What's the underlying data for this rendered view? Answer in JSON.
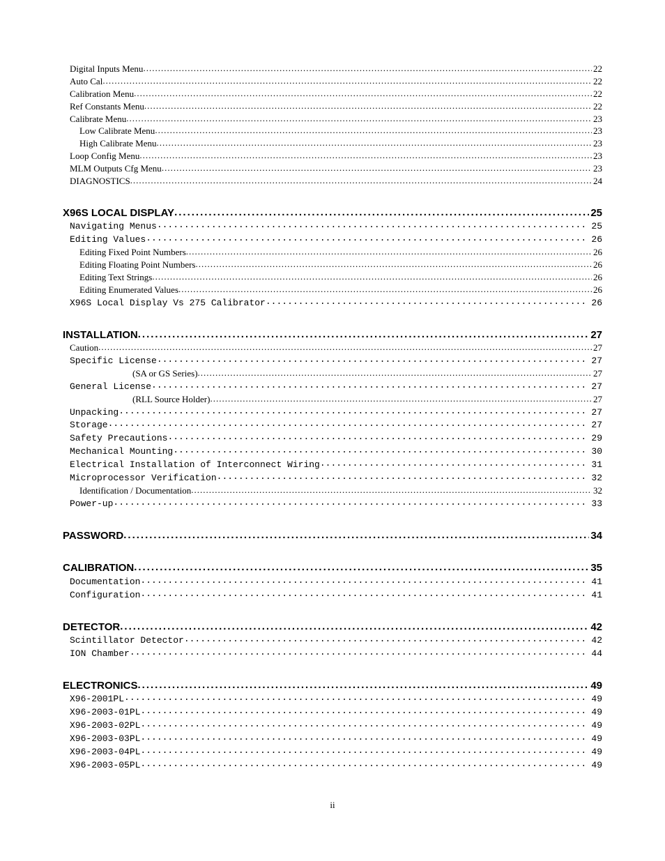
{
  "page_footer": "ii",
  "toc": [
    {
      "label": "Digital Inputs Menu",
      "page": "22",
      "style": "serif",
      "indent": 1,
      "leader": "dots"
    },
    {
      "label": "Auto Cal",
      "page": "22",
      "style": "serif",
      "indent": 1,
      "leader": "dots"
    },
    {
      "label": "Calibration Menu",
      "page": "22",
      "style": "serif",
      "indent": 1,
      "leader": "dots"
    },
    {
      "label": "Ref Constants Menu",
      "page": "22",
      "style": "serif",
      "indent": 1,
      "leader": "dots"
    },
    {
      "label": "Calibrate Menu",
      "page": "23",
      "style": "serif",
      "indent": 1,
      "leader": "dots"
    },
    {
      "label": "Low Calibrate Menu",
      "page": "23",
      "style": "serif",
      "indent": 2,
      "leader": "dots"
    },
    {
      "label": "High Calibrate Menu",
      "page": "23",
      "style": "serif",
      "indent": 2,
      "leader": "dots"
    },
    {
      "label": "Loop Config Menu",
      "page": "23",
      "style": "serif",
      "indent": 1,
      "leader": "dots"
    },
    {
      "label": "MLM Outputs Cfg Menu",
      "page": "23",
      "style": "serif",
      "indent": 1,
      "leader": "dots"
    },
    {
      "label": "DIAGNOSTICS",
      "page": "24",
      "style": "serif",
      "indent": 1,
      "leader": "dots"
    },
    {
      "label": "X96S LOCAL DISPLAY",
      "page": "25",
      "style": "h1",
      "indent": 0,
      "leader": "dots"
    },
    {
      "label": "Navigating Menus",
      "page": "25",
      "style": "mono",
      "indent": 1,
      "leader": "mono"
    },
    {
      "label": "Editing Values",
      "page": "26",
      "style": "mono",
      "indent": 1,
      "leader": "mono"
    },
    {
      "label": "Editing Fixed Point Numbers",
      "page": "26",
      "style": "serif",
      "indent": 2,
      "leader": "dots"
    },
    {
      "label": "Editing Floating Point Numbers",
      "page": "26",
      "style": "serif",
      "indent": 2,
      "leader": "dots"
    },
    {
      "label": "Editing Text Strings",
      "page": "26",
      "style": "serif",
      "indent": 2,
      "leader": "dots"
    },
    {
      "label": "Editing Enumerated Values",
      "page": "26",
      "style": "serif",
      "indent": 2,
      "leader": "dots"
    },
    {
      "label": "X96S Local Display Vs 275 Calibrator",
      "page": "26",
      "style": "mono",
      "indent": 1,
      "leader": "mono"
    },
    {
      "label": "INSTALLATION",
      "page": "27",
      "style": "h1",
      "indent": 0,
      "leader": "dots"
    },
    {
      "label": "Caution",
      "page": "27",
      "style": "serif",
      "indent": 1,
      "leader": "dots"
    },
    {
      "label": "Specific License",
      "page": "27",
      "style": "mono",
      "indent": 1,
      "leader": "mono"
    },
    {
      "label": "(SA or GS Series)",
      "page": "27",
      "style": "serif",
      "indent": 4,
      "leader": "dots"
    },
    {
      "label": "General License",
      "page": "27",
      "style": "mono",
      "indent": 1,
      "leader": "mono"
    },
    {
      "label": "(RLL Source Holder)",
      "page": "27",
      "style": "serif",
      "indent": 4,
      "leader": "dots"
    },
    {
      "label": "Unpacking",
      "page": "27",
      "style": "mono",
      "indent": 1,
      "leader": "mono"
    },
    {
      "label": "Storage",
      "page": "27",
      "style": "mono",
      "indent": 1,
      "leader": "mono"
    },
    {
      "label": "Safety Precautions",
      "page": "29",
      "style": "mono",
      "indent": 1,
      "leader": "mono"
    },
    {
      "label": "Mechanical Mounting",
      "page": "30",
      "style": "mono",
      "indent": 1,
      "leader": "mono"
    },
    {
      "label": "Electrical Installation of Interconnect Wiring",
      "page": "31",
      "style": "mono",
      "indent": 1,
      "leader": "mono"
    },
    {
      "label": "Microprocessor Verification",
      "page": "32",
      "style": "mono",
      "indent": 1,
      "leader": "mono"
    },
    {
      "label": "Identification / Documentation",
      "page": "32",
      "style": "serif",
      "indent": 2,
      "leader": "dots"
    },
    {
      "label": "Power-up",
      "page": "33",
      "style": "mono",
      "indent": 1,
      "leader": "mono"
    },
    {
      "label": "PASSWORD",
      "page": "34",
      "style": "h1",
      "indent": 0,
      "leader": "dots"
    },
    {
      "label": "CALIBRATION",
      "page": "35",
      "style": "h1",
      "indent": 0,
      "leader": "dots"
    },
    {
      "label": "Documentation",
      "page": "41",
      "style": "mono",
      "indent": 1,
      "leader": "mono"
    },
    {
      "label": "Configuration",
      "page": "41",
      "style": "mono",
      "indent": 1,
      "leader": "mono"
    },
    {
      "label": "DETECTOR",
      "page": "42",
      "style": "h1",
      "indent": 0,
      "leader": "dots"
    },
    {
      "label": "Scintillator Detector",
      "page": "42",
      "style": "mono",
      "indent": 1,
      "leader": "mono"
    },
    {
      "label": "ION Chamber",
      "page": "44",
      "style": "mono",
      "indent": 1,
      "leader": "mono"
    },
    {
      "label": "ELECTRONICS",
      "page": "49",
      "style": "h1",
      "indent": 0,
      "leader": "dots"
    },
    {
      "label": "X96-2001PL",
      "page": "49",
      "style": "mono",
      "indent": 1,
      "leader": "mono"
    },
    {
      "label": "X96-2003-01PL",
      "page": "49",
      "style": "mono",
      "indent": 1,
      "leader": "mono"
    },
    {
      "label": "X96-2003-02PL",
      "page": "49",
      "style": "mono",
      "indent": 1,
      "leader": "mono"
    },
    {
      "label": "X96-2003-03PL",
      "page": "49",
      "style": "mono",
      "indent": 1,
      "leader": "mono"
    },
    {
      "label": "X96-2003-04PL",
      "page": "49",
      "style": "mono",
      "indent": 1,
      "leader": "mono"
    },
    {
      "label": "X96-2003-05PL",
      "page": "49",
      "style": "mono",
      "indent": 1,
      "leader": "mono"
    }
  ]
}
